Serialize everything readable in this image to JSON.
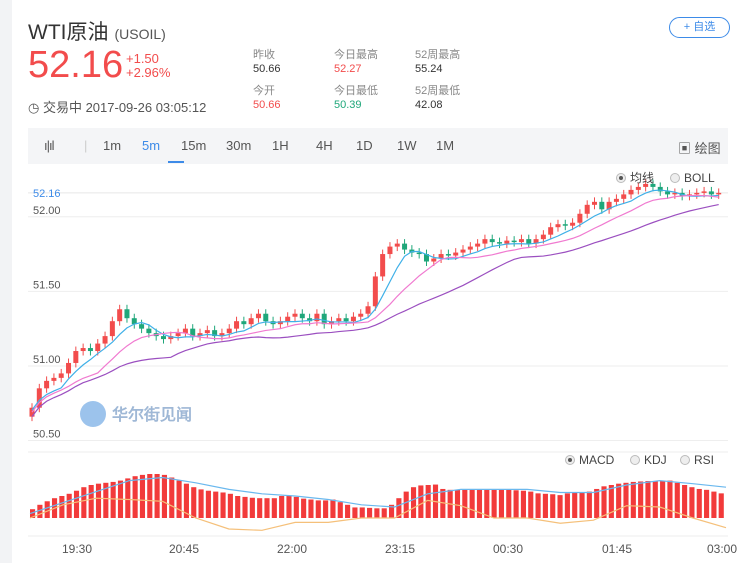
{
  "header": {
    "name": "WTI原油",
    "code": "(USOIL)",
    "price": "52.16",
    "change": "+1.50",
    "change_pct": "+2.96%",
    "status": "交易中 2017-09-26 03:05:12",
    "watch_button": "+ 自选"
  },
  "stats": [
    {
      "label": "昨收",
      "value": "50.66",
      "color": "#333333"
    },
    {
      "label": "今日最高",
      "value": "52.27",
      "color": "#f24c4c"
    },
    {
      "label": "52周最高",
      "value": "55.24",
      "color": "#333333"
    },
    {
      "label": "今开",
      "value": "50.66",
      "color": "#f24c4c"
    },
    {
      "label": "今日最低",
      "value": "50.39",
      "color": "#1fa77a"
    },
    {
      "label": "52周最低",
      "value": "42.08",
      "color": "#333333"
    }
  ],
  "toolbar": {
    "periods": [
      "1m",
      "5m",
      "15m",
      "30m",
      "1H",
      "4H",
      "1D",
      "1W",
      "1M"
    ],
    "active": "5m",
    "draw_label": "绘图"
  },
  "main_legend": {
    "options": [
      "均线",
      "BOLL"
    ],
    "selected": "均线"
  },
  "sub_legend": {
    "options": [
      "MACD",
      "KDJ",
      "RSI"
    ],
    "selected": "MACD"
  },
  "watermark": "华尔街见闻",
  "colors": {
    "up": "#f24c4c",
    "down": "#1fa77a",
    "accent": "#3d8be8"
  },
  "chart_data": {
    "type": "candlestick",
    "y_ticks": [
      "52.00",
      "51.50",
      "51.00",
      "50.50"
    ],
    "last_price_label": "52.16",
    "ylim": [
      50.45,
      52.3
    ],
    "x_ticks": [
      "19:30",
      "20:45",
      "22:00",
      "23:15",
      "00:30",
      "01:45",
      "03:00"
    ],
    "open_first": 50.66,
    "closes": [
      50.72,
      50.85,
      50.9,
      50.92,
      50.95,
      51.02,
      51.1,
      51.12,
      51.1,
      51.15,
      51.2,
      51.3,
      51.38,
      51.32,
      51.28,
      51.25,
      51.22,
      51.2,
      51.18,
      51.2,
      51.22,
      51.25,
      51.2,
      51.22,
      51.24,
      51.2,
      51.22,
      51.25,
      51.3,
      51.28,
      51.32,
      51.35,
      51.3,
      51.28,
      51.3,
      51.33,
      51.35,
      51.32,
      51.3,
      51.35,
      51.28,
      51.3,
      51.32,
      51.3,
      51.33,
      51.35,
      51.4,
      51.6,
      51.75,
      51.8,
      51.82,
      51.78,
      51.76,
      51.75,
      51.7,
      51.72,
      51.75,
      51.74,
      51.76,
      51.78,
      51.8,
      51.82,
      51.85,
      51.83,
      51.82,
      51.84,
      51.83,
      51.85,
      51.82,
      51.85,
      51.88,
      51.93,
      51.95,
      51.94,
      51.96,
      52.02,
      52.08,
      52.1,
      52.05,
      52.1,
      52.12,
      52.15,
      52.18,
      52.2,
      52.22,
      52.2,
      52.17,
      52.15,
      52.16,
      52.14,
      52.15,
      52.16,
      52.17,
      52.15,
      52.16
    ],
    "macd_hist": [
      0.2,
      0.3,
      0.38,
      0.45,
      0.5,
      0.55,
      0.62,
      0.7,
      0.75,
      0.78,
      0.8,
      0.82,
      0.85,
      0.9,
      0.95,
      0.98,
      1.0,
      1.0,
      0.98,
      0.92,
      0.85,
      0.78,
      0.7,
      0.65,
      0.62,
      0.6,
      0.58,
      0.55,
      0.5,
      0.48,
      0.46,
      0.45,
      0.45,
      0.45,
      0.5,
      0.5,
      0.48,
      0.44,
      0.42,
      0.4,
      0.4,
      0.42,
      0.36,
      0.3,
      0.24,
      0.24,
      0.23,
      0.22,
      0.22,
      0.3,
      0.45,
      0.6,
      0.7,
      0.74,
      0.75,
      0.76,
      0.66,
      0.64,
      0.64,
      0.64,
      0.64,
      0.64,
      0.64,
      0.64,
      0.64,
      0.64,
      0.63,
      0.62,
      0.6,
      0.56,
      0.55,
      0.54,
      0.52,
      0.56,
      0.58,
      0.58,
      0.6,
      0.66,
      0.72,
      0.75,
      0.78,
      0.8,
      0.82,
      0.83,
      0.84,
      0.84,
      0.85,
      0.85,
      0.8,
      0.75,
      0.7,
      0.66,
      0.64,
      0.6,
      0.56
    ],
    "dif": [
      0.1,
      0.35,
      0.6,
      0.85,
      0.92,
      0.8,
      0.65,
      0.55,
      0.5,
      0.42,
      0.3,
      0.25,
      0.55,
      0.65,
      0.65,
      0.65,
      0.58,
      0.58,
      0.75,
      0.85,
      0.78,
      0.7
    ],
    "dea": [
      0.0,
      0.3,
      0.45,
      0.42,
      0.38,
      0.0,
      -0.25,
      -0.28,
      -0.1,
      -0.1,
      0.0,
      0.0,
      0.4,
      0.28,
      0.0,
      0.0,
      -0.12,
      -0.05,
      0.28,
      0.25,
      0.0,
      -0.22
    ]
  }
}
